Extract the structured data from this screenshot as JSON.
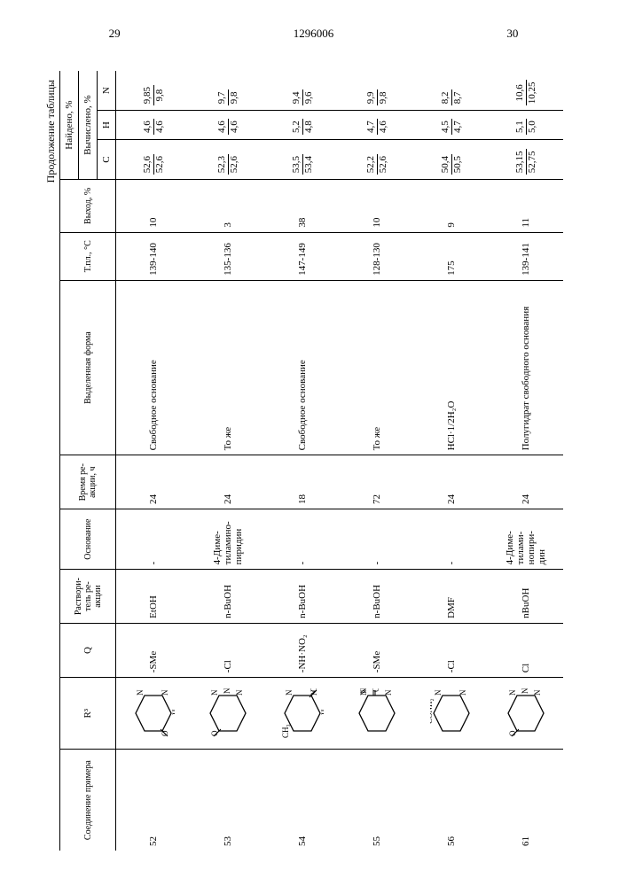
{
  "page_left": "29",
  "patent_number": "1296006",
  "page_right": "30",
  "continuation": "Продолжение таблицы",
  "headers": {
    "compound": "Соединение примера",
    "r3": "R³",
    "q": "Q",
    "solvent": "Раствори-\nтель ре-\nакции",
    "base": "Основание",
    "time": "Время ре-\nакции, ч",
    "form": "Выделенная форма",
    "mp": "Т.пл., °C",
    "yield": "Выход, %",
    "found": "Найдено, %",
    "calc": "Вычислено, %",
    "c": "C",
    "h": "H",
    "n": "N"
  },
  "rows": [
    {
      "no": "52",
      "q": "-SMe",
      "solvent": "EtOH",
      "base": "-",
      "time": "24",
      "form": "Свободное основание",
      "mp": "139-140",
      "yield": "10",
      "c_f": "52,6",
      "c_c": "52,6",
      "h_f": "4,6",
      "h_c": "4,6",
      "n_f": "9,85",
      "n_c": "9,8"
    },
    {
      "no": "53",
      "q": "-Cl",
      "solvent": "n-BuOH",
      "base": "4-Диме-\nтиламино-\nпиридин",
      "time": "24",
      "form": "То же",
      "mp": "135-136",
      "yield": "3",
      "c_f": "52,3",
      "c_c": "52,6",
      "h_f": "4,6",
      "h_c": "4,6",
      "n_f": "9,7",
      "n_c": "9,8"
    },
    {
      "no": "54",
      "q": "-NH·NO₂",
      "solvent": "n-BuOH",
      "base": "-",
      "time": "18",
      "form": "Свободное основание",
      "mp": "147-149",
      "yield": "38",
      "c_f": "53,5",
      "c_c": "53,4",
      "h_f": "5,2",
      "h_c": "4,8",
      "n_f": "9,4",
      "n_c": "9,6"
    },
    {
      "no": "55",
      "q": "-SMe",
      "solvent": "n-BuOH",
      "base": "-",
      "time": "72",
      "form": "То же",
      "mp": "128-130",
      "yield": "10",
      "c_f": "52,2",
      "c_c": "52,6",
      "h_f": "4,7",
      "h_c": "4,6",
      "n_f": "9,9",
      "n_c": "9,8"
    },
    {
      "no": "56",
      "q": "-Cl",
      "solvent": "DMF",
      "base": "-",
      "time": "24",
      "form": "HCl·1/2H₂O",
      "mp": "175",
      "yield": "9",
      "c_f": "50,4",
      "c_c": "50,5",
      "h_f": "4,5",
      "h_c": "4,7",
      "n_f": "8,2",
      "n_c": "8,7"
    },
    {
      "no": "61",
      "q": "Cl",
      "solvent": "nBuOH",
      "base": "4-Диме-\nтилами-\nнопири-\nдин",
      "time": "24",
      "form": "Полугидрат свободного основания",
      "mp": "139-141",
      "yield": "11",
      "c_f": "53,15",
      "c_c": "52,75",
      "h_f": "5,1",
      "h_c": "5,0",
      "n_f": "10,6",
      "n_c": "10,25"
    }
  ]
}
